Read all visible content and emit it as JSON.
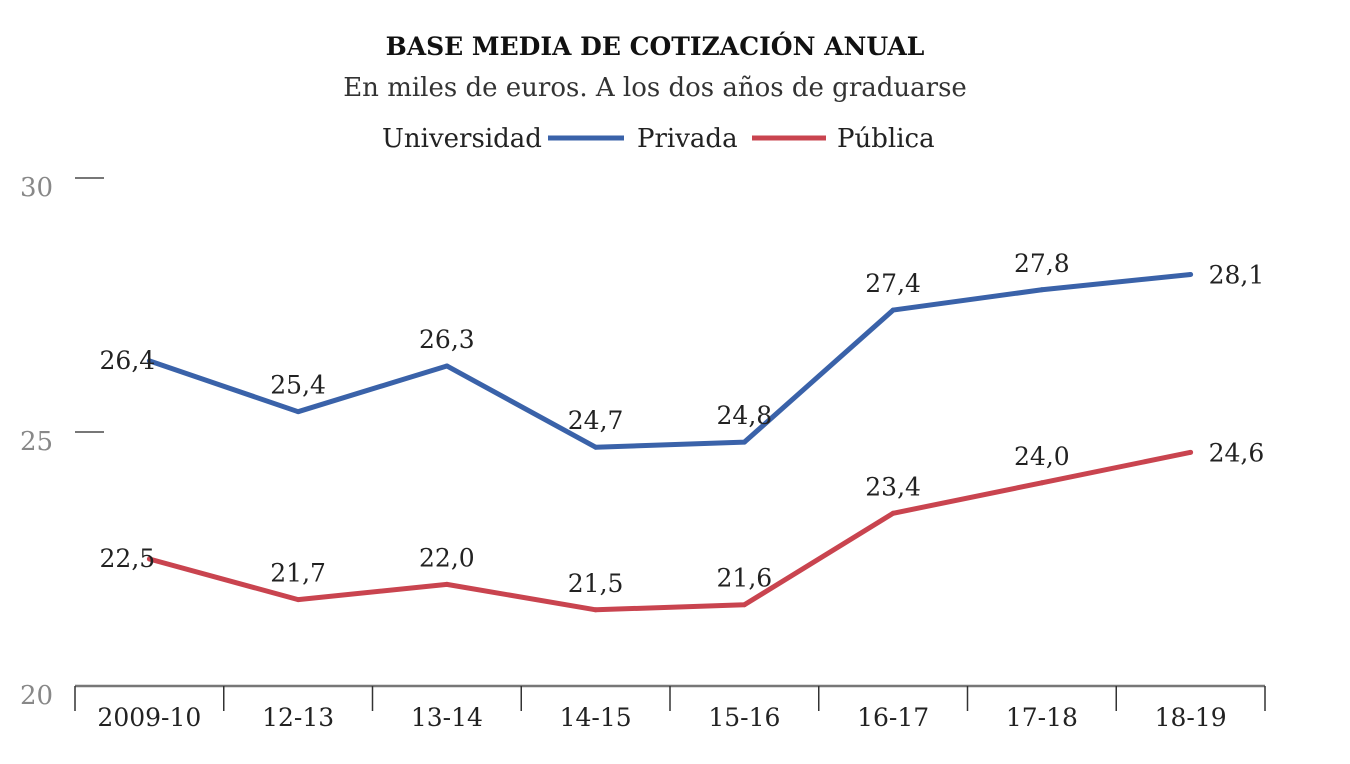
{
  "chart_data": {
    "type": "line",
    "title": "BASE MEDIA DE COTIZACIÓN ANUAL",
    "subtitle": "En miles de euros. A los dos años de graduarse",
    "legend_title": "Universidad",
    "legend_placement": "top",
    "categories": [
      "2009-10",
      "12-13",
      "13-14",
      "14-15",
      "15-16",
      "16-17",
      "17-18",
      "18-19"
    ],
    "series": [
      {
        "name": "Privada",
        "color": "#3a62a9",
        "values": [
          26.4,
          25.4,
          26.3,
          24.7,
          24.8,
          27.4,
          27.8,
          28.1
        ],
        "labels": [
          "26,4",
          "25,4",
          "26,3",
          "24,7",
          "24,8",
          "27,4",
          "27,8",
          "28,1"
        ]
      },
      {
        "name": "Pública",
        "color": "#c9444f",
        "values": [
          22.5,
          21.7,
          22.0,
          21.5,
          21.6,
          23.4,
          24.0,
          24.6
        ],
        "labels": [
          "22,5",
          "21,7",
          "22,0",
          "21,5",
          "21,6",
          "23,4",
          "24,0",
          "24,6"
        ]
      }
    ],
    "yticks": [
      20,
      25,
      30
    ],
    "ylim": [
      20,
      30
    ],
    "grid": false
  }
}
